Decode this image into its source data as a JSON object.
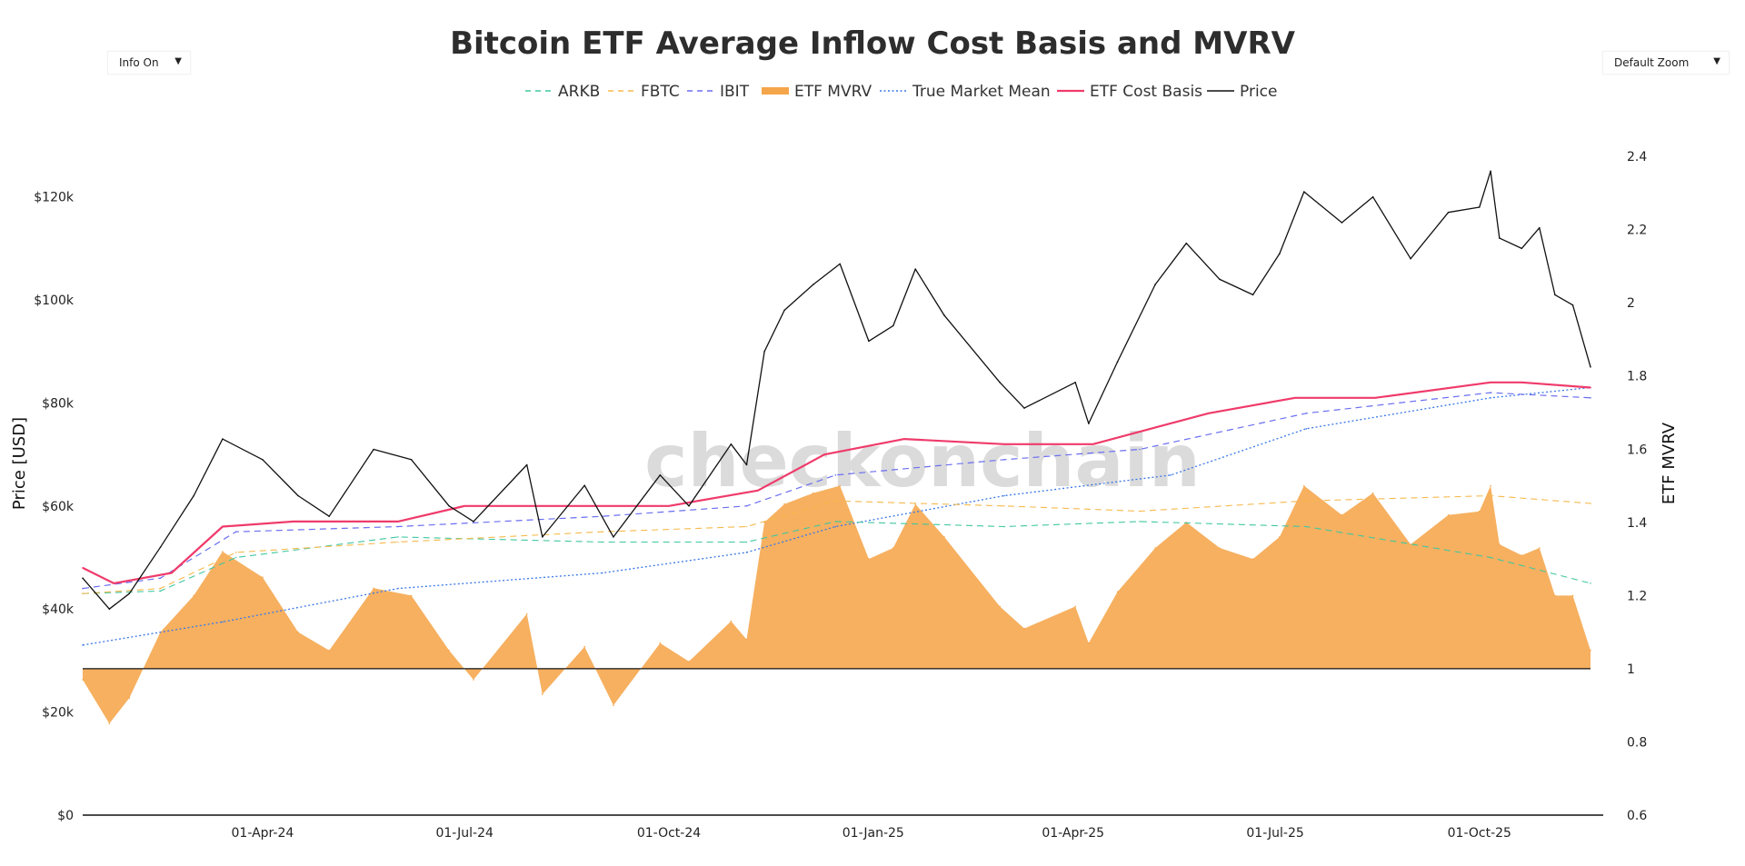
{
  "controls": {
    "info_toggle": {
      "label": "Info On",
      "arrow": "▼"
    },
    "zoom_select": {
      "label": "Default Zoom",
      "arrow": "▼"
    }
  },
  "watermark": "checkonchain",
  "chart_data": {
    "type": "line",
    "title": "Bitcoin ETF Average Inflow Cost Basis and MVRV",
    "legend_position": "top-center",
    "grid": false,
    "colors": {
      "ARKB": "#3fc7a0",
      "FBTC": "#f6b94c",
      "IBIT": "#6a6ef0",
      "ETF MVRV": "#f5a54a",
      "True Market Mean": "#3a78e8",
      "ETF Cost Basis": "#ef3b6b",
      "Price": "#111111"
    },
    "legend": [
      {
        "name": "ARKB",
        "style": "dashed"
      },
      {
        "name": "FBTC",
        "style": "dashed"
      },
      {
        "name": "IBIT",
        "style": "dashed"
      },
      {
        "name": "ETF MVRV",
        "style": "area"
      },
      {
        "name": "True Market Mean",
        "style": "dotted"
      },
      {
        "name": "ETF Cost Basis",
        "style": "solid-thick"
      },
      {
        "name": "Price",
        "style": "solid"
      }
    ],
    "x_axis": {
      "start": "2024-01-11",
      "end": "2025-11-20",
      "ticks": [
        {
          "date": "2024-04-01",
          "label": "01-Apr-24"
        },
        {
          "date": "2024-07-01",
          "label": "01-Jul-24"
        },
        {
          "date": "2024-10-01",
          "label": "01-Oct-24"
        },
        {
          "date": "2025-01-01",
          "label": "01-Jan-25"
        },
        {
          "date": "2025-04-01",
          "label": "01-Apr-25"
        },
        {
          "date": "2025-07-01",
          "label": "01-Jul-25"
        },
        {
          "date": "2025-10-01",
          "label": "01-Oct-25"
        }
      ]
    },
    "y_left": {
      "label": "Price [USD]",
      "range": [
        0,
        130000
      ],
      "ticks": [
        {
          "value": 0,
          "label": "$0"
        },
        {
          "value": 20000,
          "label": "$20k"
        },
        {
          "value": 40000,
          "label": "$40k"
        },
        {
          "value": 60000,
          "label": "$60k"
        },
        {
          "value": 80000,
          "label": "$80k"
        },
        {
          "value": 100000,
          "label": "$100k"
        },
        {
          "value": 120000,
          "label": "$120k"
        }
      ]
    },
    "y_right": {
      "label": "ETF MVRV",
      "range": [
        0.6,
        2.43
      ],
      "ticks": [
        {
          "value": 0.6,
          "label": "0.6"
        },
        {
          "value": 0.8,
          "label": "0.8"
        },
        {
          "value": 1.0,
          "label": "1"
        },
        {
          "value": 1.2,
          "label": "1.2"
        },
        {
          "value": 1.4,
          "label": "1.4"
        },
        {
          "value": 1.6,
          "label": "1.6"
        },
        {
          "value": 1.8,
          "label": "1.8"
        },
        {
          "value": 2.0,
          "label": "2"
        },
        {
          "value": 2.2,
          "label": "2.2"
        },
        {
          "value": 2.4,
          "label": "2.4"
        }
      ]
    },
    "series": [
      {
        "name": "Price",
        "axis": "left",
        "x": [
          "2024-01-11",
          "2024-01-23",
          "2024-02-01",
          "2024-02-15",
          "2024-03-01",
          "2024-03-14",
          "2024-04-01",
          "2024-04-17",
          "2024-05-01",
          "2024-05-21",
          "2024-06-07",
          "2024-06-24",
          "2024-07-05",
          "2024-07-29",
          "2024-08-05",
          "2024-08-24",
          "2024-09-06",
          "2024-09-27",
          "2024-10-10",
          "2024-10-29",
          "2024-11-05",
          "2024-11-13",
          "2024-11-22",
          "2024-12-05",
          "2024-12-17",
          "2024-12-30",
          "2025-01-10",
          "2025-01-20",
          "2025-02-02",
          "2025-02-27",
          "2025-03-10",
          "2025-04-02",
          "2025-04-08",
          "2025-04-21",
          "2025-05-08",
          "2025-05-22",
          "2025-06-06",
          "2025-06-21",
          "2025-07-03",
          "2025-07-14",
          "2025-07-31",
          "2025-08-14",
          "2025-08-31",
          "2025-09-17",
          "2025-10-01",
          "2025-10-06",
          "2025-10-10",
          "2025-10-20",
          "2025-10-28",
          "2025-11-04",
          "2025-11-12",
          "2025-11-20"
        ],
        "values": [
          46000,
          40000,
          43000,
          52000,
          62000,
          73000,
          69000,
          62000,
          58000,
          71000,
          69000,
          60000,
          57000,
          68000,
          54000,
          64000,
          54000,
          66000,
          60000,
          72000,
          68000,
          90000,
          98000,
          103000,
          107000,
          92000,
          95000,
          106000,
          97000,
          84000,
          79000,
          84000,
          76000,
          88000,
          103000,
          111000,
          104000,
          101000,
          109000,
          121000,
          115000,
          120000,
          108000,
          117000,
          118000,
          125000,
          112000,
          110000,
          114000,
          101000,
          99000,
          87000
        ]
      },
      {
        "name": "ETF Cost Basis",
        "axis": "left",
        "x": [
          "2024-01-11",
          "2024-01-25",
          "2024-02-20",
          "2024-03-14",
          "2024-04-15",
          "2024-06-01",
          "2024-07-01",
          "2024-08-01",
          "2024-10-01",
          "2024-11-10",
          "2024-12-10",
          "2025-01-15",
          "2025-03-01",
          "2025-04-10",
          "2025-06-01",
          "2025-07-10",
          "2025-08-15",
          "2025-10-06",
          "2025-10-20",
          "2025-11-20"
        ],
        "values": [
          48000,
          45000,
          47000,
          56000,
          57000,
          57000,
          60000,
          60000,
          60000,
          63000,
          70000,
          73000,
          72000,
          72000,
          78000,
          81000,
          81000,
          84000,
          84000,
          83000
        ]
      },
      {
        "name": "IBIT",
        "axis": "left",
        "x": [
          "2024-01-11",
          "2024-02-15",
          "2024-03-20",
          "2024-06-01",
          "2024-09-01",
          "2024-11-05",
          "2024-12-15",
          "2025-03-01",
          "2025-05-01",
          "2025-07-15",
          "2025-10-06",
          "2025-11-20"
        ],
        "values": [
          44000,
          46000,
          55000,
          56000,
          58000,
          60000,
          66000,
          69000,
          71000,
          78000,
          82000,
          81000
        ]
      },
      {
        "name": "FBTC",
        "axis": "left",
        "x": [
          "2024-01-11",
          "2024-02-15",
          "2024-03-20",
          "2024-06-01",
          "2024-09-01",
          "2024-11-05",
          "2024-12-15",
          "2025-03-01",
          "2025-05-01",
          "2025-07-15",
          "2025-10-06",
          "2025-11-20"
        ],
        "values": [
          43000,
          44000,
          51000,
          53000,
          55000,
          56000,
          61000,
          60000,
          59000,
          61000,
          62000,
          60500
        ]
      },
      {
        "name": "ARKB",
        "axis": "left",
        "x": [
          "2024-01-11",
          "2024-02-15",
          "2024-03-20",
          "2024-06-01",
          "2024-09-01",
          "2024-11-05",
          "2024-12-15",
          "2025-03-01",
          "2025-05-01",
          "2025-07-15",
          "2025-10-06",
          "2025-11-20"
        ],
        "values": [
          43000,
          43500,
          50000,
          54000,
          53000,
          53000,
          57000,
          56000,
          57000,
          56000,
          50000,
          45000
        ]
      },
      {
        "name": "True Market Mean",
        "axis": "left",
        "x": [
          "2024-01-11",
          "2024-03-14",
          "2024-06-01",
          "2024-09-01",
          "2024-11-05",
          "2024-12-15",
          "2025-03-01",
          "2025-05-15",
          "2025-07-15",
          "2025-10-06",
          "2025-11-20"
        ],
        "values": [
          33000,
          37500,
          44000,
          47000,
          51000,
          56000,
          62000,
          66000,
          75000,
          81000,
          83000
        ]
      },
      {
        "name": "ETF MVRV",
        "axis": "right",
        "x": [
          "2024-01-11",
          "2024-01-23",
          "2024-02-01",
          "2024-02-15",
          "2024-03-01",
          "2024-03-14",
          "2024-04-01",
          "2024-04-17",
          "2024-05-01",
          "2024-05-21",
          "2024-06-07",
          "2024-06-24",
          "2024-07-05",
          "2024-07-29",
          "2024-08-05",
          "2024-08-24",
          "2024-09-06",
          "2024-09-27",
          "2024-10-10",
          "2024-10-29",
          "2024-11-05",
          "2024-11-13",
          "2024-11-22",
          "2024-12-05",
          "2024-12-17",
          "2024-12-30",
          "2025-01-10",
          "2025-01-20",
          "2025-02-02",
          "2025-02-27",
          "2025-03-10",
          "2025-04-02",
          "2025-04-08",
          "2025-04-21",
          "2025-05-08",
          "2025-05-22",
          "2025-06-06",
          "2025-06-21",
          "2025-07-03",
          "2025-07-14",
          "2025-07-31",
          "2025-08-14",
          "2025-08-31",
          "2025-09-17",
          "2025-10-01",
          "2025-10-06",
          "2025-10-10",
          "2025-10-20",
          "2025-10-28",
          "2025-11-04",
          "2025-11-12",
          "2025-11-20"
        ],
        "values": [
          0.97,
          0.85,
          0.92,
          1.1,
          1.2,
          1.32,
          1.25,
          1.1,
          1.05,
          1.22,
          1.2,
          1.05,
          0.97,
          1.15,
          0.93,
          1.06,
          0.9,
          1.07,
          1.02,
          1.13,
          1.08,
          1.4,
          1.45,
          1.48,
          1.5,
          1.3,
          1.33,
          1.45,
          1.36,
          1.17,
          1.11,
          1.17,
          1.07,
          1.21,
          1.33,
          1.4,
          1.33,
          1.3,
          1.36,
          1.5,
          1.42,
          1.48,
          1.34,
          1.42,
          1.43,
          1.5,
          1.34,
          1.31,
          1.33,
          1.2,
          1.2,
          1.05
        ]
      }
    ]
  }
}
